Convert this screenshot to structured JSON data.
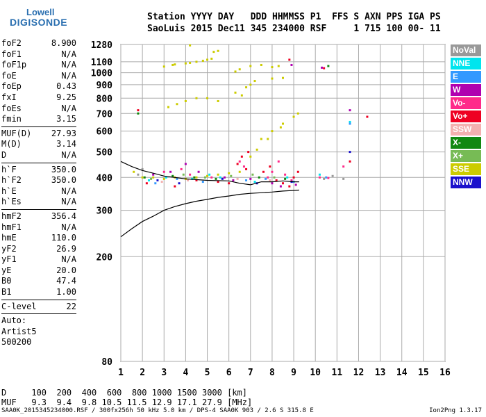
{
  "logo": {
    "line1": "Lowell",
    "line2": "DIGISONDE"
  },
  "header": {
    "line1": "Station YYYY DAY   DDD HHMMSS P1  FFS S AXN PPS IGA PS",
    "line2": "SaoLuis 2015 Dec11 345 234000 RSF     1 715 100 00- 11"
  },
  "params": {
    "group1": [
      {
        "k": "foF2",
        "v": "8.900"
      },
      {
        "k": "foF1",
        "v": "N/A"
      },
      {
        "k": "foF1p",
        "v": "N/A"
      },
      {
        "k": "foE",
        "v": "N/A"
      },
      {
        "k": "foEp",
        "v": "0.43"
      },
      {
        "k": "fxI",
        "v": "9.25"
      },
      {
        "k": "foEs",
        "v": "N/A"
      },
      {
        "k": "fmin",
        "v": "3.15"
      }
    ],
    "group2": [
      {
        "k": "MUF(D)",
        "v": "27.93"
      },
      {
        "k": "M(D)",
        "v": "3.14"
      },
      {
        "k": "D",
        "v": "N/A"
      }
    ],
    "group3": [
      {
        "k": "h`F",
        "v": "350.0"
      },
      {
        "k": "h`F2",
        "v": "350.0"
      },
      {
        "k": "h`E",
        "v": "N/A"
      },
      {
        "k": "h`Es",
        "v": "N/A"
      }
    ],
    "group4": [
      {
        "k": "hmF2",
        "v": "356.4"
      },
      {
        "k": "hmF1",
        "v": "N/A"
      },
      {
        "k": "hmE",
        "v": "110.0"
      },
      {
        "k": "yF2",
        "v": "26.9"
      },
      {
        "k": "yF1",
        "v": "N/A"
      },
      {
        "k": "yE",
        "v": "20.0"
      },
      {
        "k": "B0",
        "v": "47.4"
      },
      {
        "k": "B1",
        "v": "1.00"
      }
    ],
    "group5": [
      {
        "k": "C-level",
        "v": "22"
      }
    ],
    "group6": [
      "Auto:",
      "Artist5",
      "500200"
    ]
  },
  "legend": [
    {
      "label": "NoVal",
      "color": "#999999"
    },
    {
      "label": "NNE",
      "color": "#00e5ee"
    },
    {
      "label": "E",
      "color": "#3399ff"
    },
    {
      "label": "W",
      "color": "#b000b0"
    },
    {
      "label": "Vo-",
      "color": "#ff2a8a"
    },
    {
      "label": "Vo+",
      "color": "#ee0022"
    },
    {
      "label": "SSW",
      "color": "#f4b0b0"
    },
    {
      "label": "X-",
      "color": "#118811"
    },
    {
      "label": "X+",
      "color": "#77bb55"
    },
    {
      "label": "SSE",
      "color": "#cccc00"
    },
    {
      "label": "NNW",
      "color": "#1a10cc"
    }
  ],
  "dmuf": {
    "line1": "D     100  200  400  600  800 1000 1500 3000 [km]",
    "line2": "MUF   9.3  9.4  9.8 10.5 11.5 12.9 17.1 27.9 [MHz]"
  },
  "footer": "SAA0K_2015345234000.RSF / 300fx256h 50 kHz 5.0 km / DPS-4 SAA0K 903 / 2.6 S 315.8 E",
  "version": "Ion2Png 1.3.17",
  "chart_data": {
    "type": "scatter",
    "xlabel": "",
    "ylabel": "",
    "x_ticks": [
      1,
      2,
      3,
      4,
      5,
      6,
      7,
      8,
      9,
      10,
      11,
      12,
      13,
      14,
      15,
      16
    ],
    "y_ticks": [
      80,
      200,
      300,
      400,
      500,
      600,
      700,
      800,
      900,
      1000,
      1100,
      1280
    ],
    "xlim": [
      1,
      16
    ],
    "ylim": [
      80,
      1280
    ],
    "grid": true,
    "y_scale": "log",
    "series": [
      {
        "name": "SSE",
        "color": "#cccc00",
        "points": [
          [
            3.0,
            1055
          ],
          [
            3.5,
            1075
          ],
          [
            4.0,
            1085
          ],
          [
            4.5,
            1100
          ],
          [
            5.0,
            1120
          ],
          [
            5.2,
            1130
          ],
          [
            3.4,
            1070
          ],
          [
            4.2,
            1090
          ],
          [
            4.8,
            1110
          ],
          [
            3.2,
            740
          ],
          [
            3.6,
            760
          ],
          [
            4.0,
            780
          ],
          [
            4.5,
            800
          ],
          [
            5.0,
            800
          ],
          [
            5.5,
            780
          ],
          [
            6.3,
            1010
          ],
          [
            6.5,
            1030
          ],
          [
            7.0,
            1060
          ],
          [
            7.5,
            1070
          ],
          [
            8.0,
            1050
          ],
          [
            8.3,
            1060
          ],
          [
            7.0,
            900
          ],
          [
            7.2,
            930
          ],
          [
            6.8,
            880
          ],
          [
            8.0,
            950
          ],
          [
            8.5,
            955
          ],
          [
            6.6,
            820
          ],
          [
            7.5,
            560
          ],
          [
            8.0,
            600
          ],
          [
            8.5,
            640
          ],
          [
            9.0,
            680
          ],
          [
            9.2,
            700
          ],
          [
            7.0,
            480
          ],
          [
            7.3,
            510
          ],
          [
            7.8,
            560
          ],
          [
            8.4,
            620
          ],
          [
            2.0,
            400
          ],
          [
            2.5,
            400
          ],
          [
            3.0,
            395
          ],
          [
            3.5,
            400
          ],
          [
            4.0,
            395
          ],
          [
            4.5,
            400
          ],
          [
            5.0,
            405
          ],
          [
            5.5,
            410
          ],
          [
            6.0,
            415
          ],
          [
            6.5,
            420
          ],
          [
            1.6,
            420
          ],
          [
            4.2,
            1270
          ],
          [
            5.3,
            1200
          ],
          [
            5.5,
            1210
          ],
          [
            6.3,
            840
          ]
        ]
      },
      {
        "name": "Vo+",
        "color": "#ee0022",
        "points": [
          [
            6.4,
            450
          ],
          [
            6.6,
            480
          ],
          [
            6.8,
            430
          ],
          [
            6.9,
            500
          ],
          [
            7.6,
            420
          ],
          [
            7.9,
            440
          ],
          [
            8.2,
            390
          ],
          [
            8.5,
            380
          ],
          [
            8.8,
            370
          ],
          [
            9.0,
            400
          ],
          [
            9.2,
            420
          ],
          [
            2.2,
            380
          ],
          [
            3.5,
            370
          ],
          [
            4.5,
            390
          ],
          [
            5.5,
            385
          ],
          [
            6.0,
            380
          ],
          [
            11.6,
            460
          ],
          [
            12.4,
            680
          ],
          [
            1.8,
            720
          ],
          [
            8.8,
            1120
          ],
          [
            10.4,
            1040
          ]
        ]
      },
      {
        "name": "Vo-",
        "color": "#ff2a8a",
        "points": [
          [
            6.5,
            460
          ],
          [
            6.7,
            440
          ],
          [
            7.8,
            400
          ],
          [
            8.0,
            420
          ],
          [
            8.3,
            460
          ],
          [
            8.6,
            410
          ],
          [
            8.9,
            390
          ],
          [
            3.0,
            420
          ],
          [
            3.8,
            430
          ],
          [
            4.2,
            410
          ],
          [
            5.2,
            400
          ],
          [
            10.2,
            400
          ],
          [
            10.6,
            398
          ],
          [
            11.3,
            440
          ]
        ]
      },
      {
        "name": "W",
        "color": "#b000b0",
        "points": [
          [
            2.5,
            410
          ],
          [
            3.3,
            420
          ],
          [
            4.0,
            450
          ],
          [
            4.6,
            420
          ],
          [
            5.8,
            400
          ],
          [
            6.2,
            390
          ],
          [
            7.0,
            395
          ],
          [
            8.0,
            380
          ],
          [
            8.4,
            370
          ],
          [
            9.1,
            375
          ],
          [
            10.3,
            1045
          ],
          [
            8.9,
            1070
          ],
          [
            11.6,
            720
          ]
        ]
      },
      {
        "name": "NNE",
        "color": "#00e5ee",
        "points": [
          [
            2.3,
            390
          ],
          [
            3.1,
            400
          ],
          [
            4.3,
            395
          ],
          [
            5.1,
            410
          ],
          [
            5.6,
            400
          ],
          [
            7.2,
            385
          ],
          [
            8.7,
            400
          ],
          [
            10.2,
            410
          ],
          [
            11.6,
            650
          ]
        ]
      },
      {
        "name": "E",
        "color": "#3399ff",
        "points": [
          [
            2.6,
            380
          ],
          [
            3.6,
            395
          ],
          [
            4.8,
            385
          ],
          [
            6.8,
            390
          ],
          [
            7.7,
            395
          ],
          [
            9.0,
            385
          ],
          [
            10.5,
            400
          ],
          [
            11.6,
            640
          ]
        ]
      },
      {
        "name": "X-",
        "color": "#118811",
        "points": [
          [
            2.1,
            400
          ],
          [
            3.4,
            405
          ],
          [
            4.4,
            400
          ],
          [
            5.4,
            395
          ],
          [
            7.4,
            400
          ],
          [
            8.6,
            395
          ],
          [
            1.8,
            700
          ],
          [
            10.6,
            1060
          ]
        ]
      },
      {
        "name": "X+",
        "color": "#77bb55",
        "points": [
          [
            2.4,
            395
          ],
          [
            3.9,
            410
          ],
          [
            4.9,
            400
          ],
          [
            6.1,
            405
          ],
          [
            7.1,
            410
          ],
          [
            8.1,
            400
          ]
        ]
      },
      {
        "name": "NNW",
        "color": "#1a10cc",
        "points": [
          [
            2.7,
            390
          ],
          [
            3.7,
            380
          ],
          [
            5.7,
            395
          ],
          [
            7.3,
            380
          ],
          [
            8.9,
            385
          ],
          [
            11.6,
            500
          ]
        ]
      },
      {
        "name": "SSW",
        "color": "#f4b0b0",
        "points": [
          [
            2.9,
            385
          ],
          [
            4.1,
            390
          ],
          [
            6.4,
            395
          ],
          [
            7.9,
            390
          ]
        ]
      },
      {
        "name": "NoVal",
        "color": "#999999",
        "points": [
          [
            10.4,
            395
          ],
          [
            10.8,
            405
          ],
          [
            11.3,
            395
          ],
          [
            2.0,
            430
          ],
          [
            1.8,
            410
          ]
        ]
      }
    ],
    "profile_line": {
      "color": "#000000",
      "points": [
        [
          1,
          238
        ],
        [
          1.5,
          255
        ],
        [
          2,
          272
        ],
        [
          2.5,
          285
        ],
        [
          3,
          300
        ],
        [
          3.5,
          310
        ],
        [
          4,
          318
        ],
        [
          4.5,
          325
        ],
        [
          5,
          330
        ],
        [
          5.5,
          336
        ],
        [
          6,
          340
        ],
        [
          6.5,
          345
        ],
        [
          7,
          348
        ],
        [
          7.5,
          350
        ],
        [
          8,
          352
        ],
        [
          8.5,
          355
        ],
        [
          9,
          357
        ],
        [
          9.25,
          358
        ]
      ]
    },
    "trace_line": {
      "color": "#000000",
      "points": [
        [
          1,
          460
        ],
        [
          1.5,
          440
        ],
        [
          2,
          425
        ],
        [
          2.5,
          415
        ],
        [
          3,
          405
        ],
        [
          3.5,
          400
        ],
        [
          4,
          395
        ],
        [
          5,
          390
        ],
        [
          6,
          388
        ],
        [
          6.5,
          380
        ],
        [
          7,
          375
        ],
        [
          7.5,
          385
        ],
        [
          8,
          385
        ],
        [
          8.5,
          388
        ],
        [
          9,
          385
        ],
        [
          9.25,
          385
        ]
      ]
    }
  }
}
